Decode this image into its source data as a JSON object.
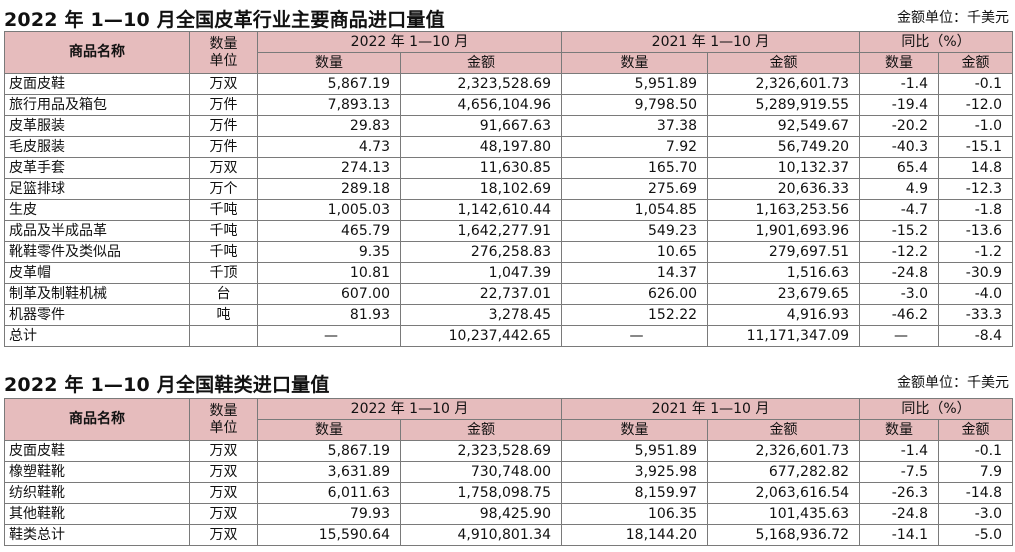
{
  "table1": {
    "title": "2022 年 1—10 月全国皮革行业主要商品进口量值",
    "unit_note": "金额单位：千美元",
    "header": {
      "name": "商品名称",
      "unit_line1": "数量",
      "unit_line2": "单位",
      "group_2022": "2022 年 1—10 月",
      "group_2021": "2021 年 1—10 月",
      "group_yoy": "同比（%）",
      "qty": "数量",
      "amount": "金额"
    },
    "rows": [
      {
        "name": "皮面皮鞋",
        "unit": "万双",
        "q22": "5,867.19",
        "a22": "2,323,528.69",
        "q21": "5,951.89",
        "a21": "2,326,601.73",
        "yq": "-1.4",
        "ya": "-0.1"
      },
      {
        "name": "旅行用品及箱包",
        "unit": "万件",
        "q22": "7,893.13",
        "a22": "4,656,104.96",
        "q21": "9,798.50",
        "a21": "5,289,919.55",
        "yq": "-19.4",
        "ya": "-12.0"
      },
      {
        "name": "皮革服装",
        "unit": "万件",
        "q22": "29.83",
        "a22": "91,667.63",
        "q21": "37.38",
        "a21": "92,549.67",
        "yq": "-20.2",
        "ya": "-1.0"
      },
      {
        "name": "毛皮服装",
        "unit": "万件",
        "q22": "4.73",
        "a22": "48,197.80",
        "q21": "7.92",
        "a21": "56,749.20",
        "yq": "-40.3",
        "ya": "-15.1"
      },
      {
        "name": "皮革手套",
        "unit": "万双",
        "q22": "274.13",
        "a22": "11,630.85",
        "q21": "165.70",
        "a21": "10,132.37",
        "yq": "65.4",
        "ya": "14.8"
      },
      {
        "name": "足篮排球",
        "unit": "万个",
        "q22": "289.18",
        "a22": "18,102.69",
        "q21": "275.69",
        "a21": "20,636.33",
        "yq": "4.9",
        "ya": "-12.3"
      },
      {
        "name": "生皮",
        "unit": "千吨",
        "q22": "1,005.03",
        "a22": "1,142,610.44",
        "q21": "1,054.85",
        "a21": "1,163,253.56",
        "yq": "-4.7",
        "ya": "-1.8"
      },
      {
        "name": "成品及半成品革",
        "unit": "千吨",
        "q22": "465.79",
        "a22": "1,642,277.91",
        "q21": "549.23",
        "a21": "1,901,693.96",
        "yq": "-15.2",
        "ya": "-13.6"
      },
      {
        "name": "靴鞋零件及类似品",
        "unit": "千吨",
        "q22": "9.35",
        "a22": "276,258.83",
        "q21": "10.65",
        "a21": "279,697.51",
        "yq": "-12.2",
        "ya": "-1.2"
      },
      {
        "name": "皮革帽",
        "unit": "千顶",
        "q22": "10.81",
        "a22": "1,047.39",
        "q21": "14.37",
        "a21": "1,516.63",
        "yq": "-24.8",
        "ya": "-30.9"
      },
      {
        "name": "制革及制鞋机械",
        "unit": "台",
        "q22": "607.00",
        "a22": "22,737.01",
        "q21": "626.00",
        "a21": "23,679.65",
        "yq": "-3.0",
        "ya": "-4.0"
      },
      {
        "name": "机器零件",
        "unit": "吨",
        "q22": "81.93",
        "a22": "3,278.45",
        "q21": "152.22",
        "a21": "4,916.93",
        "yq": "-46.2",
        "ya": "-33.3"
      },
      {
        "name": "总计",
        "unit": "",
        "q22": "—",
        "a22": "10,237,442.65",
        "q21": "—",
        "a21": "11,171,347.09",
        "yq": "—",
        "ya": "-8.4"
      }
    ]
  },
  "table2": {
    "title": "2022 年 1—10 月全国鞋类进口量值",
    "unit_note": "金额单位：千美元",
    "header": {
      "name": "商品名称",
      "unit_line1": "数量",
      "unit_line2": "单位",
      "group_2022": "2022 年 1—10 月",
      "group_2021": "2021 年 1—10 月",
      "group_yoy": "同比（%）",
      "qty": "数量",
      "amount": "金额"
    },
    "rows": [
      {
        "name": "皮面皮鞋",
        "unit": "万双",
        "q22": "5,867.19",
        "a22": "2,323,528.69",
        "q21": "5,951.89",
        "a21": "2,326,601.73",
        "yq": "-1.4",
        "ya": "-0.1"
      },
      {
        "name": "橡塑鞋靴",
        "unit": "万双",
        "q22": "3,631.89",
        "a22": "730,748.00",
        "q21": "3,925.98",
        "a21": "677,282.82",
        "yq": "-7.5",
        "ya": "7.9"
      },
      {
        "name": "纺织鞋靴",
        "unit": "万双",
        "q22": "6,011.63",
        "a22": "1,758,098.75",
        "q21": "8,159.97",
        "a21": "2,063,616.54",
        "yq": "-26.3",
        "ya": "-14.8"
      },
      {
        "name": "其他鞋靴",
        "unit": "万双",
        "q22": "79.93",
        "a22": "98,425.90",
        "q21": "106.35",
        "a21": "101,435.63",
        "yq": "-24.8",
        "ya": "-3.0"
      },
      {
        "name": "鞋类总计",
        "unit": "万双",
        "q22": "15,590.64",
        "a22": "4,910,801.34",
        "q21": "18,144.20",
        "a21": "5,168,936.72",
        "yq": "-14.1",
        "ya": "-5.0"
      }
    ]
  }
}
